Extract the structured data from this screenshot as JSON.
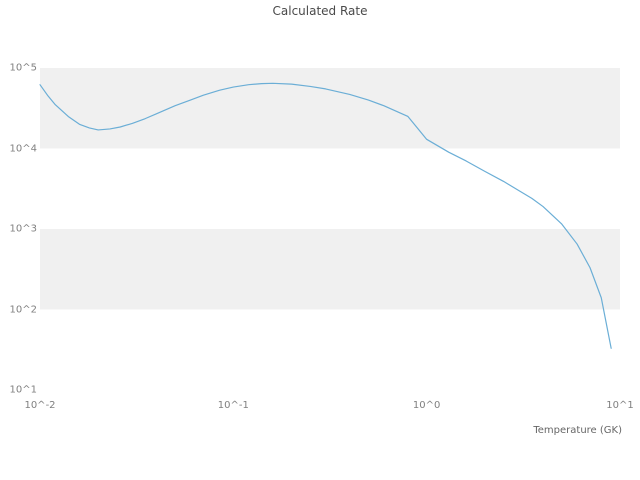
{
  "figure": {
    "title": "Calculated Rate",
    "x_axis_label": "Temperature (GK)"
  },
  "chart_data": {
    "type": "line",
    "title": "Calculated Rate",
    "xlabel": "Temperature (GK)",
    "ylabel": "",
    "x_scale": "log",
    "y_scale": "log",
    "xlim": [
      0.01,
      10
    ],
    "ylim": [
      10,
      100000
    ],
    "grid": false,
    "legend": "none",
    "xticks": [
      {
        "label": "10^-2",
        "value": 0.01
      },
      {
        "label": "10^-1",
        "value": 0.1
      },
      {
        "label": "10^0",
        "value": 1
      },
      {
        "label": "10^1",
        "value": 10
      }
    ],
    "yticks": [
      {
        "label": "10^1",
        "value": 10
      },
      {
        "label": "10^2",
        "value": 100
      },
      {
        "label": "10^3",
        "value": 1000
      },
      {
        "label": "10^4",
        "value": 10000
      },
      {
        "label": "10^5",
        "value": 100000
      }
    ],
    "shaded_bands": [
      {
        "y_from": 10000,
        "y_to": 100000
      },
      {
        "y_from": 100,
        "y_to": 1000
      }
    ],
    "colors": {
      "line": "#6baed6",
      "band": "#f0f0f0",
      "tick_text": "#808080",
      "title_text": "#4a4a4a"
    },
    "series": [
      {
        "name": "calculated-rate",
        "x": [
          0.01,
          0.011,
          0.012,
          0.014,
          0.016,
          0.018,
          0.02,
          0.023,
          0.026,
          0.03,
          0.035,
          0.04,
          0.05,
          0.06,
          0.07,
          0.085,
          0.1,
          0.12,
          0.14,
          0.16,
          0.2,
          0.25,
          0.3,
          0.4,
          0.5,
          0.6,
          0.8,
          1.0,
          1.3,
          1.6,
          2.0,
          2.5,
          3.0,
          3.5,
          4.0,
          5.0,
          6.0,
          7.0,
          8.0,
          9.0
        ],
        "y": [
          62000,
          45000,
          35000,
          25000,
          20000,
          18000,
          17000,
          17500,
          18500,
          20500,
          23500,
          27000,
          34000,
          40000,
          46000,
          53000,
          58000,
          62000,
          64000,
          64500,
          63000,
          59000,
          55000,
          47000,
          40000,
          34000,
          25000,
          13000,
          9000,
          7000,
          5200,
          3900,
          3000,
          2400,
          1900,
          1150,
          650,
          330,
          140,
          33
        ]
      }
    ]
  }
}
